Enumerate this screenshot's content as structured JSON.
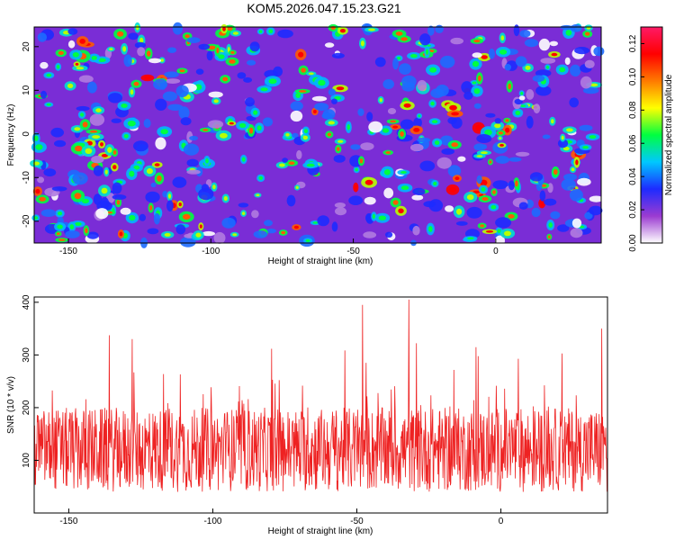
{
  "title": "KOM5.2026.047.15.23.G21",
  "chart_data": [
    {
      "type": "heatmap",
      "xlabel": "Height of straight line (km)",
      "ylabel": "Frequency (Hz)",
      "xlim": [
        -162,
        37
      ],
      "ylim": [
        -25,
        24.5
      ],
      "x_ticks": [
        -150,
        -100,
        -50,
        0
      ],
      "x_tick_labels": [
        "-150",
        "-100",
        "-50",
        "0"
      ],
      "y_ticks": [
        -20,
        -10,
        0,
        10,
        20
      ],
      "y_tick_labels": [
        "-20",
        "-10",
        "0",
        "10",
        "20"
      ],
      "colorbar": {
        "label": "Normalized spectral amplitude",
        "range": [
          0,
          0.13
        ],
        "ticks": [
          0,
          0.02,
          0.04,
          0.06,
          0.08,
          0.1,
          0.12
        ],
        "tick_labels": [
          "0.00",
          "0.02",
          "0.04",
          "0.06",
          "0.08",
          "0.10",
          "0.12"
        ],
        "colors": [
          "#ffffff",
          "#9b3bd1",
          "#1d2bff",
          "#00c8ff",
          "#00ff40",
          "#ffff00",
          "#ff7a00",
          "#ff0000",
          "#ff1a66"
        ]
      },
      "background_color": "#7a2dd6",
      "description": "dense field of small noisy blobs, mostly blue/cyan, few green/red peaks"
    },
    {
      "type": "line",
      "xlabel": "Height of straight line (km)",
      "ylabel": "SNR (10 * v/v)",
      "xlim": [
        -162,
        37
      ],
      "ylim": [
        0,
        410
      ],
      "x_ticks": [
        -150,
        -100,
        -50,
        0
      ],
      "x_tick_labels": [
        "-150",
        "-100",
        "-50",
        "0"
      ],
      "y_ticks": [
        100,
        200,
        300,
        400
      ],
      "y_tick_labels": [
        "100",
        "200",
        "300",
        "400"
      ],
      "series": [
        {
          "name": "SNR",
          "color": "#ee2222",
          "baseline": 120,
          "noise_amplitude": 80,
          "peak": {
            "x": -32,
            "y": 405
          },
          "secondary_peaks": [
            {
              "x": -48,
              "y": 395
            },
            {
              "x": 35,
              "y": 350
            },
            {
              "x": -128,
              "y": 330
            }
          ]
        }
      ]
    }
  ]
}
